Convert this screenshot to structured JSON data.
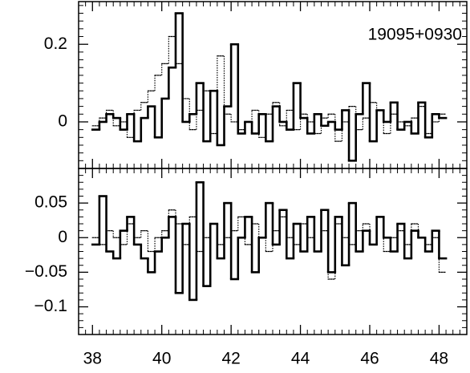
{
  "chart_data": [
    {
      "type": "step",
      "annotation": "19095+0930",
      "x": [
        38,
        38.2,
        38.4,
        38.6,
        38.8,
        39,
        39.2,
        39.4,
        39.6,
        39.8,
        40,
        40.2,
        40.4,
        40.6,
        40.8,
        41,
        41.2,
        41.4,
        41.6,
        41.8,
        42,
        42.2,
        42.4,
        42.6,
        42.8,
        43,
        43.2,
        43.4,
        43.6,
        43.8,
        44,
        44.2,
        44.4,
        44.6,
        44.8,
        45,
        45.2,
        45.4,
        45.6,
        45.8,
        46,
        46.2,
        46.4,
        46.6,
        46.8,
        47,
        47.2,
        47.4,
        47.6,
        47.8,
        48
      ],
      "series": [
        {
          "color": "#000000",
          "linestyle": "solid",
          "values": [
            -0.02,
            0,
            0.02,
            0.01,
            -0.02,
            0.02,
            -0.05,
            0.01,
            0.04,
            -0.04,
            0.06,
            0.14,
            0.28,
            0,
            0.02,
            0.1,
            -0.05,
            0.08,
            -0.06,
            0.04,
            0.2,
            -0.03,
            0,
            -0.03,
            0.02,
            -0.05,
            0.04,
            0,
            -0.02,
            0.1,
            0.01,
            -0.03,
            0.02,
            -0.01,
            0,
            -0.02,
            0.03,
            -0.1,
            0.02,
            0.1,
            -0.05,
            0.03,
            0,
            0.05,
            -0.02,
            0,
            -0.03,
            0.05,
            -0.04,
            0.02,
            0.01
          ]
        },
        {
          "color": "#000000",
          "linestyle": "dotted",
          "values": [
            -0.01,
            0.01,
            0.03,
            -0.01,
            0,
            -0.04,
            0.03,
            0.05,
            0.08,
            0.12,
            0.15,
            0.22,
            0.15,
            0.06,
            -0.02,
            0.03,
            0.08,
            -0.03,
            0.17,
            0.02,
            0,
            -0.02,
            0,
            0.03,
            -0.04,
            0.02,
            0.05,
            -0.01,
            0.03,
            -0.02,
            0.02,
            0,
            -0.03,
            0.01,
            0.02,
            -0.05,
            0,
            0.04,
            -0.02,
            0.01,
            0.05,
            0.03,
            -0.03,
            0.02,
            0,
            -0.01,
            0.01,
            0.04,
            -0.03,
            0,
            0.02
          ]
        }
      ],
      "xlim": [
        37.6,
        48.8
      ],
      "ylim": [
        -0.12,
        0.31
      ],
      "yticks": [
        0,
        0.2
      ]
    },
    {
      "type": "step",
      "x": [
        38,
        38.2,
        38.4,
        38.6,
        38.8,
        39,
        39.2,
        39.4,
        39.6,
        39.8,
        40,
        40.2,
        40.4,
        40.6,
        40.8,
        41,
        41.2,
        41.4,
        41.6,
        41.8,
        42,
        42.2,
        42.4,
        42.6,
        42.8,
        43,
        43.2,
        43.4,
        43.6,
        43.8,
        44,
        44.2,
        44.4,
        44.6,
        44.8,
        45,
        45.2,
        45.4,
        45.6,
        45.8,
        46,
        46.2,
        46.4,
        46.6,
        46.8,
        47,
        47.2,
        47.4,
        47.6,
        47.8,
        48
      ],
      "series": [
        {
          "color": "#000000",
          "linestyle": "solid",
          "values": [
            -0.01,
            0.06,
            -0.02,
            -0.03,
            0.01,
            0.03,
            -0.01,
            -0.03,
            -0.05,
            -0.02,
            0,
            0.03,
            -0.08,
            0.02,
            -0.09,
            0.08,
            -0.07,
            0.02,
            -0.03,
            0.05,
            -0.06,
            0,
            0.03,
            -0.05,
            0,
            0.05,
            -0.01,
            0.04,
            -0.03,
            0.02,
            -0.02,
            0.03,
            -0.02,
            0.04,
            -0.05,
            0.03,
            -0.04,
            0.05,
            -0.02,
            0.01,
            -0.01,
            0.03,
            0,
            -0.02,
            0.02,
            -0.03,
            0.01,
            0,
            -0.02,
            0.01,
            -0.03
          ]
        },
        {
          "color": "#000000",
          "linestyle": "dotted",
          "values": [
            0,
            -0.01,
            0.01,
            0,
            -0.01,
            0.02,
            0,
            0.01,
            -0.02,
            0,
            0.01,
            0.04,
            0.02,
            -0.01,
            0.03,
            -0.02,
            0,
            0.02,
            -0.01,
            0,
            0.01,
            0.03,
            -0.01,
            0.02,
            0,
            -0.02,
            0.01,
            0.03,
            0,
            -0.01,
            0.02,
            0,
            -0.02,
            0.01,
            -0.06,
            0.02,
            0,
            -0.01,
            0.01,
            0.02,
            -0.01,
            0.03,
            -0.02,
            0,
            0.01,
            -0.01,
            0.02,
            0,
            -0.01,
            0,
            -0.05
          ]
        }
      ],
      "xlim": [
        37.6,
        48.8
      ],
      "ylim": [
        -0.14,
        0.1
      ],
      "yticks": [
        0.05,
        0,
        {
          "value": -0.05,
          "label": "−0.05"
        },
        {
          "value": -0.1,
          "label": "−0.1"
        }
      ],
      "xticks": [
        38,
        40,
        42,
        44,
        46,
        48
      ]
    }
  ]
}
